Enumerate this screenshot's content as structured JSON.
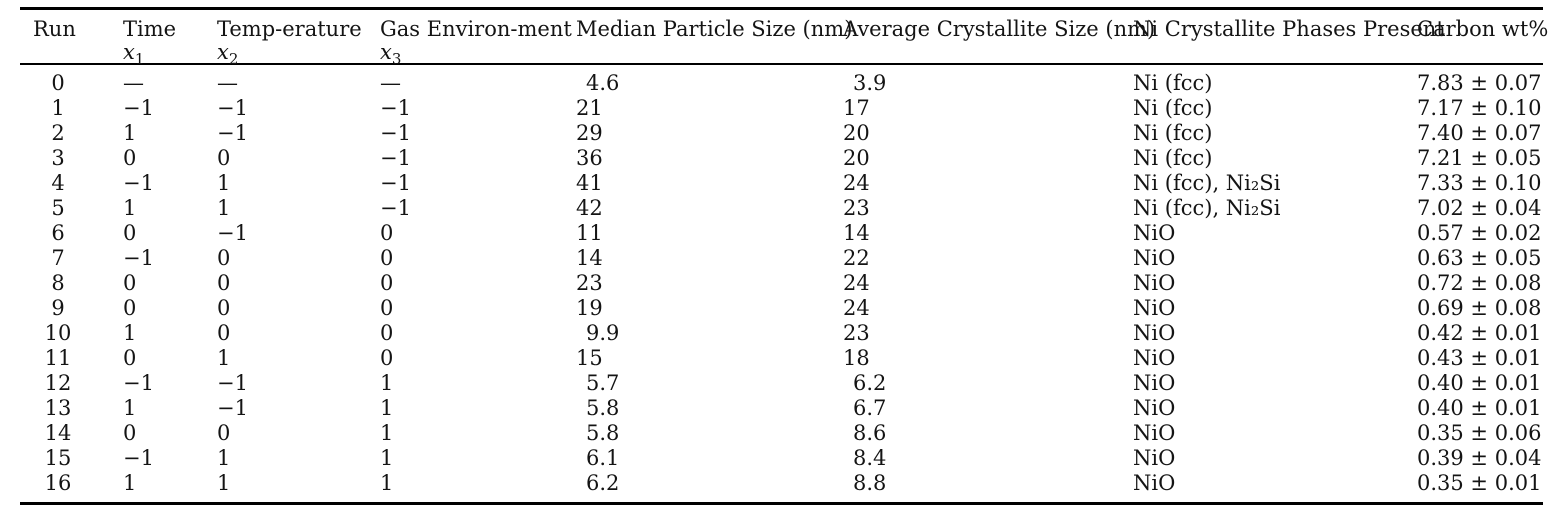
{
  "table": {
    "columns": [
      {
        "label": "Run"
      },
      {
        "label": "Time",
        "var": "x",
        "sub": "1"
      },
      {
        "label": "Temp-erature",
        "var": "x",
        "sub": "2"
      },
      {
        "label": "Gas Environ-ment",
        "var": "x",
        "sub": "3"
      },
      {
        "label": "Median Particle Size (nm)"
      },
      {
        "label": "Average Crystallite Size (nm)"
      },
      {
        "label": "Ni Crystallite Phases Present"
      },
      {
        "label": "Carbon wt%"
      }
    ],
    "rows": [
      {
        "cells": [
          "0",
          "—",
          "—",
          "—",
          "4.6",
          "3.9",
          "Ni (fcc)",
          "7.83 ± 0.07"
        ]
      },
      {
        "cells": [
          "1",
          "−1",
          "−1",
          "−1",
          "21",
          "17",
          "Ni (fcc)",
          "7.17 ± 0.10"
        ]
      },
      {
        "cells": [
          "2",
          "1",
          "−1",
          "−1",
          "29",
          "20",
          "Ni (fcc)",
          "7.40 ± 0.07"
        ]
      },
      {
        "cells": [
          "3",
          "0",
          "0",
          "−1",
          "36",
          "20",
          "Ni (fcc)",
          "7.21 ± 0.05"
        ]
      },
      {
        "cells": [
          "4",
          "−1",
          "1",
          "−1",
          "41",
          "24",
          "Ni (fcc), Ni₂Si",
          "7.33 ± 0.10"
        ]
      },
      {
        "cells": [
          "5",
          "1",
          "1",
          "−1",
          "42",
          "23",
          "Ni (fcc), Ni₂Si",
          "7.02 ± 0.04"
        ]
      },
      {
        "cells": [
          "6",
          "0",
          "−1",
          "0",
          "11",
          "14",
          "NiO",
          "0.57 ± 0.02"
        ]
      },
      {
        "cells": [
          "7",
          "−1",
          "0",
          "0",
          "14",
          "22",
          "NiO",
          "0.63 ± 0.05"
        ]
      },
      {
        "cells": [
          "8",
          "0",
          "0",
          "0",
          "23",
          "24",
          "NiO",
          "0.72 ± 0.08"
        ]
      },
      {
        "cells": [
          "9",
          "0",
          "0",
          "0",
          "19",
          "24",
          "NiO",
          "0.69 ± 0.08"
        ]
      },
      {
        "cells": [
          "10",
          "1",
          "0",
          "0",
          "9.9",
          "23",
          "NiO",
          "0.42 ± 0.01"
        ]
      },
      {
        "cells": [
          "11",
          "0",
          "1",
          "0",
          "15",
          "18",
          "NiO",
          "0.43 ± 0.01"
        ]
      },
      {
        "cells": [
          "12",
          "−1",
          "−1",
          "1",
          "5.7",
          "6.2",
          "NiO",
          "0.40 ± 0.01"
        ]
      },
      {
        "cells": [
          "13",
          "1",
          "−1",
          "1",
          "5.8",
          "6.7",
          "NiO",
          "0.40 ± 0.01"
        ]
      },
      {
        "cells": [
          "14",
          "0",
          "0",
          "1",
          "5.8",
          "8.6",
          "NiO",
          "0.35 ± 0.06"
        ]
      },
      {
        "cells": [
          "15",
          "−1",
          "1",
          "1",
          "6.1",
          "8.4",
          "NiO",
          "0.39 ± 0.04"
        ]
      },
      {
        "cells": [
          "16",
          "1",
          "1",
          "1",
          "6.2",
          "8.8",
          "NiO",
          "0.35 ± 0.01"
        ]
      }
    ]
  }
}
